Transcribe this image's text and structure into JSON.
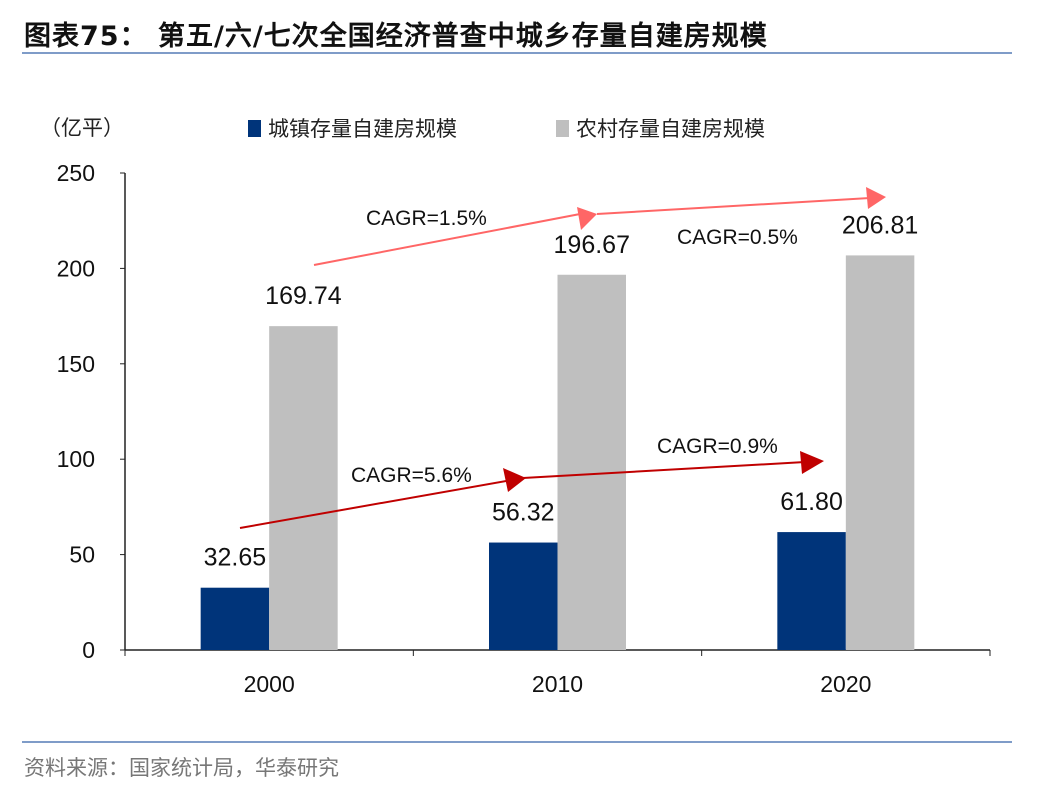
{
  "header": {
    "title": "图表75：  第五/六/七次全国经济普查中城乡存量自建房规模"
  },
  "footer": {
    "source": "资料来源：国家统计局，华泰研究"
  },
  "colors": {
    "urban": "#00347a",
    "rural": "#bfbfbf",
    "urban_arrow": "#c00000",
    "rural_arrow": "#ff6666"
  },
  "chart_data": {
    "type": "bar",
    "title": "",
    "ylabel": "（亿平）",
    "xlabel": "",
    "ylim": [
      0,
      250
    ],
    "yticks": [
      0,
      50,
      100,
      150,
      200,
      250
    ],
    "categories": [
      "2000",
      "2010",
      "2020"
    ],
    "series": [
      {
        "name": "城镇存量自建房规模",
        "values": [
          32.65,
          56.32,
          61.8
        ],
        "labels": [
          "32.65",
          "56.32",
          "61.80"
        ]
      },
      {
        "name": "农村存量自建房规模",
        "values": [
          169.74,
          196.67,
          206.81
        ],
        "labels": [
          "169.74",
          "196.67",
          "206.81"
        ]
      }
    ],
    "legend": "top",
    "grid": false,
    "annotations": [
      {
        "series": "城镇存量自建房规模",
        "text": "CAGR=5.6%"
      },
      {
        "series": "城镇存量自建房规模",
        "text": "CAGR=0.9%"
      },
      {
        "series": "农村存量自建房规模",
        "text": "CAGR=1.5%"
      },
      {
        "series": "农村存量自建房规模",
        "text": "CAGR=0.5%"
      }
    ]
  }
}
